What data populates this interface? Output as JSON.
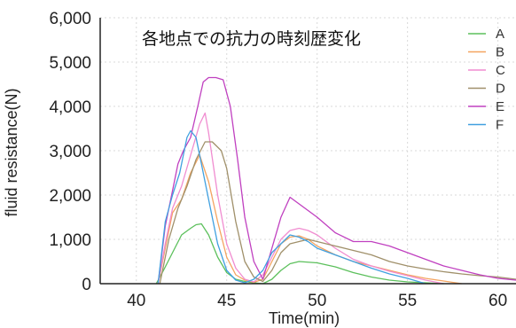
{
  "chart_data": {
    "type": "line",
    "title": "各地点での抗力の時刻歴変化",
    "xlabel": "Time(min)",
    "ylabel": "fluid resistance(N)",
    "xlim": [
      38,
      61
    ],
    "ylim": [
      0,
      6000
    ],
    "x_ticks": [
      40,
      45,
      50,
      55,
      60
    ],
    "y_ticks": [
      0,
      1000,
      2000,
      3000,
      4000,
      5000,
      6000
    ],
    "x_tick_labels": [
      "40",
      "45",
      "50",
      "55",
      "60"
    ],
    "y_tick_labels": [
      "0",
      "1,000",
      "2,000",
      "3,000",
      "4,000",
      "5,000",
      "6,000"
    ],
    "grid": true,
    "legend_position": "right",
    "series": [
      {
        "name": "A",
        "color": "#5cc05c",
        "x": [
          41.1,
          41.5,
          42.0,
          42.5,
          43.0,
          43.3,
          43.6,
          44.0,
          44.5,
          45.0,
          45.5,
          46.0,
          46.5,
          47.0,
          47.5,
          48.0,
          48.5,
          49.0,
          50.0,
          51.0,
          52.0,
          53.0,
          54.0,
          55.0,
          56.0,
          57.0
        ],
        "y": [
          0,
          300,
          700,
          1100,
          1250,
          1330,
          1350,
          1100,
          600,
          250,
          100,
          50,
          20,
          0,
          100,
          300,
          450,
          500,
          470,
          380,
          250,
          150,
          80,
          40,
          20,
          0
        ]
      },
      {
        "name": "B",
        "color": "#f4a460",
        "x": [
          41.2,
          41.6,
          42.0,
          42.5,
          43.0,
          43.5,
          44.0,
          44.5,
          45.0,
          45.5,
          46.0,
          46.5,
          47.0,
          47.5,
          48.0,
          48.5,
          49.0,
          49.5,
          50.0,
          51.0,
          52.0,
          53.0,
          54.0,
          55.0,
          56.0,
          57.0,
          58.0
        ],
        "y": [
          0,
          800,
          1600,
          1900,
          2500,
          2900,
          2300,
          1400,
          600,
          200,
          80,
          30,
          100,
          500,
          900,
          1050,
          1080,
          1000,
          850,
          650,
          500,
          400,
          300,
          200,
          120,
          60,
          0
        ]
      },
      {
        "name": "C",
        "color": "#f08cd0",
        "x": [
          41.2,
          41.6,
          42.0,
          42.5,
          43.0,
          43.5,
          43.8,
          44.0,
          44.5,
          45.0,
          45.5,
          46.0,
          46.5,
          47.0,
          47.5,
          48.0,
          48.5,
          49.0,
          49.5,
          50.0,
          51.0,
          52.0,
          53.0,
          54.0,
          55.0,
          56.0,
          57.0
        ],
        "y": [
          0,
          900,
          1700,
          2200,
          2900,
          3600,
          3850,
          3400,
          2000,
          900,
          350,
          100,
          40,
          200,
          600,
          1000,
          1200,
          1250,
          1200,
          1100,
          800,
          550,
          400,
          280,
          180,
          80,
          0
        ]
      },
      {
        "name": "D",
        "color": "#a0906a",
        "x": [
          41.3,
          41.8,
          42.3,
          42.8,
          43.3,
          43.8,
          44.2,
          44.7,
          45.0,
          45.5,
          46.0,
          46.5,
          47.0,
          47.5,
          48.0,
          48.5,
          49.0,
          49.5,
          50.0,
          51.0,
          52.0,
          53.0,
          54.0,
          55.0,
          56.0,
          57.0,
          58.0,
          59.0,
          60.0,
          61.0
        ],
        "y": [
          0,
          1000,
          1700,
          2200,
          2800,
          3200,
          3200,
          3000,
          2600,
          1400,
          500,
          150,
          50,
          300,
          700,
          900,
          950,
          1000,
          950,
          850,
          750,
          650,
          500,
          400,
          330,
          270,
          220,
          180,
          150,
          100
        ]
      },
      {
        "name": "E",
        "color": "#c040c0",
        "x": [
          41.2,
          41.6,
          42.0,
          42.3,
          42.6,
          43.0,
          43.4,
          43.7,
          44.0,
          44.4,
          44.8,
          45.2,
          45.6,
          46.0,
          46.5,
          47.0,
          47.5,
          48.0,
          48.5,
          49.0,
          49.5,
          50.0,
          51.0,
          52.0,
          53.0,
          54.0,
          55.0,
          56.0,
          57.0,
          58.0,
          59.0,
          60.0,
          61.0
        ],
        "y": [
          0,
          1300,
          2100,
          2700,
          3000,
          3300,
          4000,
          4550,
          4650,
          4650,
          4600,
          4000,
          2800,
          1500,
          500,
          100,
          800,
          1500,
          1950,
          1800,
          1650,
          1500,
          1150,
          950,
          950,
          850,
          700,
          550,
          400,
          300,
          200,
          120,
          80
        ]
      },
      {
        "name": "F",
        "color": "#40a0e0",
        "x": [
          41.2,
          41.6,
          42.0,
          42.4,
          42.8,
          43.0,
          43.3,
          43.6,
          44.0,
          44.5,
          45.0,
          45.5,
          46.0,
          46.5,
          47.0,
          47.5,
          48.0,
          48.5,
          49.0,
          49.5,
          50.0,
          51.0,
          52.0,
          53.0,
          54.0,
          55.0,
          56.0
        ],
        "y": [
          0,
          1400,
          2000,
          2500,
          3300,
          3450,
          3300,
          2700,
          1900,
          900,
          300,
          80,
          20,
          100,
          300,
          700,
          900,
          1100,
          1050,
          950,
          800,
          650,
          500,
          350,
          220,
          120,
          0
        ]
      }
    ]
  }
}
